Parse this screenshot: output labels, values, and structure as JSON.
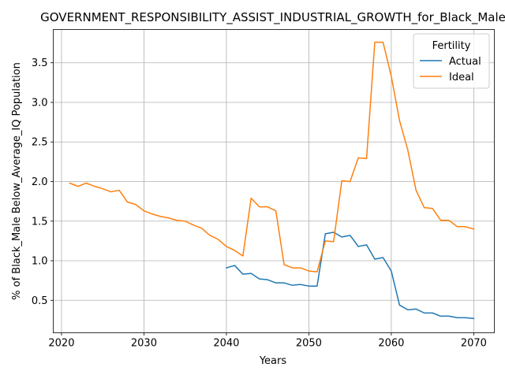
{
  "chart_data": {
    "type": "line",
    "title": "GOVERNMENT_RESPONSIBILITY_ASSIST_INDUSTRIAL_GROWTH_for_Black_Male",
    "xlabel": "Years",
    "ylabel": "% of Black_Male Below_Average_IQ Population",
    "xlim": [
      2019,
      2072.5
    ],
    "ylim": [
      0.09,
      3.92
    ],
    "xticks": [
      2020,
      2030,
      2040,
      2050,
      2060,
      2070
    ],
    "yticks": [
      0.5,
      1.0,
      1.5,
      2.0,
      2.5,
      3.0,
      3.5
    ],
    "ytick_labels": [
      "0.5",
      "1.0",
      "1.5",
      "2.0",
      "2.5",
      "3.0",
      "3.5"
    ],
    "grid": true,
    "legend": {
      "title": "Fertility",
      "placement": "top-right",
      "entries": [
        "Actual",
        "Ideal"
      ]
    },
    "series": [
      {
        "name": "Actual",
        "color": "#1f77b4",
        "x": [
          2040,
          2041,
          2042,
          2043,
          2044,
          2045,
          2046,
          2047,
          2048,
          2049,
          2050,
          2051,
          2052,
          2053,
          2054,
          2055,
          2056,
          2057,
          2058,
          2059,
          2060,
          2061,
          2062,
          2063,
          2064,
          2065,
          2066,
          2067,
          2068,
          2069,
          2070
        ],
        "y": [
          0.91,
          0.94,
          0.83,
          0.84,
          0.77,
          0.76,
          0.72,
          0.72,
          0.69,
          0.7,
          0.68,
          0.68,
          1.34,
          1.36,
          1.3,
          1.32,
          1.18,
          1.2,
          1.02,
          1.04,
          0.87,
          0.44,
          0.38,
          0.39,
          0.34,
          0.34,
          0.3,
          0.3,
          0.28,
          0.28,
          0.27
        ]
      },
      {
        "name": "Ideal",
        "color": "#ff7f0e",
        "x": [
          2021,
          2022,
          2023,
          2024,
          2025,
          2026,
          2027,
          2028,
          2029,
          2030,
          2031,
          2032,
          2033,
          2034,
          2035,
          2036,
          2037,
          2038,
          2039,
          2040,
          2041,
          2042,
          2043,
          2044,
          2045,
          2046,
          2047,
          2048,
          2049,
          2050,
          2051,
          2052,
          2053,
          2054,
          2055,
          2056,
          2057,
          2058,
          2059,
          2060,
          2061,
          2062,
          2063,
          2064,
          2065,
          2066,
          2067,
          2068,
          2069,
          2070
        ],
        "y": [
          1.98,
          1.94,
          1.98,
          1.94,
          1.91,
          1.87,
          1.89,
          1.74,
          1.71,
          1.63,
          1.59,
          1.56,
          1.54,
          1.51,
          1.5,
          1.45,
          1.41,
          1.32,
          1.27,
          1.18,
          1.13,
          1.06,
          1.79,
          1.68,
          1.68,
          1.63,
          0.95,
          0.91,
          0.91,
          0.87,
          0.86,
          1.25,
          1.24,
          2.01,
          2.0,
          2.3,
          2.29,
          3.76,
          3.76,
          3.33,
          2.77,
          2.4,
          1.89,
          1.67,
          1.66,
          1.51,
          1.51,
          1.43,
          1.43,
          1.4
        ]
      }
    ]
  }
}
